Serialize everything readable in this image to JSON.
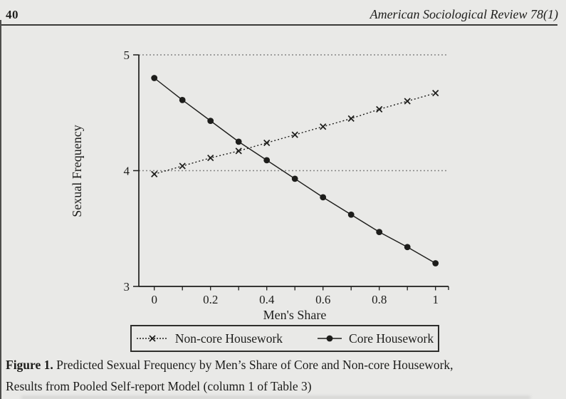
{
  "header": {
    "page_number": "40",
    "journal_title": "American Sociological Review 78(1)"
  },
  "figure": {
    "caption_label": "Figure 1.",
    "caption_line1": "Predicted Sexual Frequency by Men’s Share of Core and Non-core Housework,",
    "caption_line2": "Results from Pooled Self-report Model (column 1 of Table 3)"
  },
  "colors": {
    "page_background": "#e9e9e7",
    "ink": "#1d1d1b",
    "grid": "#858585"
  },
  "chart_data": {
    "type": "line",
    "title": "",
    "xlabel": "Men's Share",
    "ylabel": "Sexual Frequency",
    "xlim": [
      0,
      1
    ],
    "ylim": [
      3,
      5
    ],
    "x": [
      0,
      0.1,
      0.2,
      0.3,
      0.4,
      0.5,
      0.6,
      0.7,
      0.8,
      0.9,
      1
    ],
    "series": [
      {
        "name": "Non-core Housework",
        "marker": "x",
        "line": "dotted",
        "values": [
          3.97,
          4.04,
          4.11,
          4.17,
          4.24,
          4.31,
          4.38,
          4.45,
          4.53,
          4.6,
          4.67
        ]
      },
      {
        "name": "Core Housework",
        "marker": "circle",
        "line": "solid",
        "values": [
          4.8,
          4.61,
          4.43,
          4.25,
          4.09,
          3.93,
          3.77,
          3.62,
          3.47,
          3.34,
          3.2
        ]
      }
    ],
    "yticks": [
      3,
      4,
      5
    ],
    "xticks_labeled": [
      0,
      0.2,
      0.4,
      0.6,
      0.8,
      1
    ],
    "gridlines_y": [
      4,
      5
    ],
    "grid": "horizontal-dotted",
    "legend_position": "bottom-box"
  }
}
